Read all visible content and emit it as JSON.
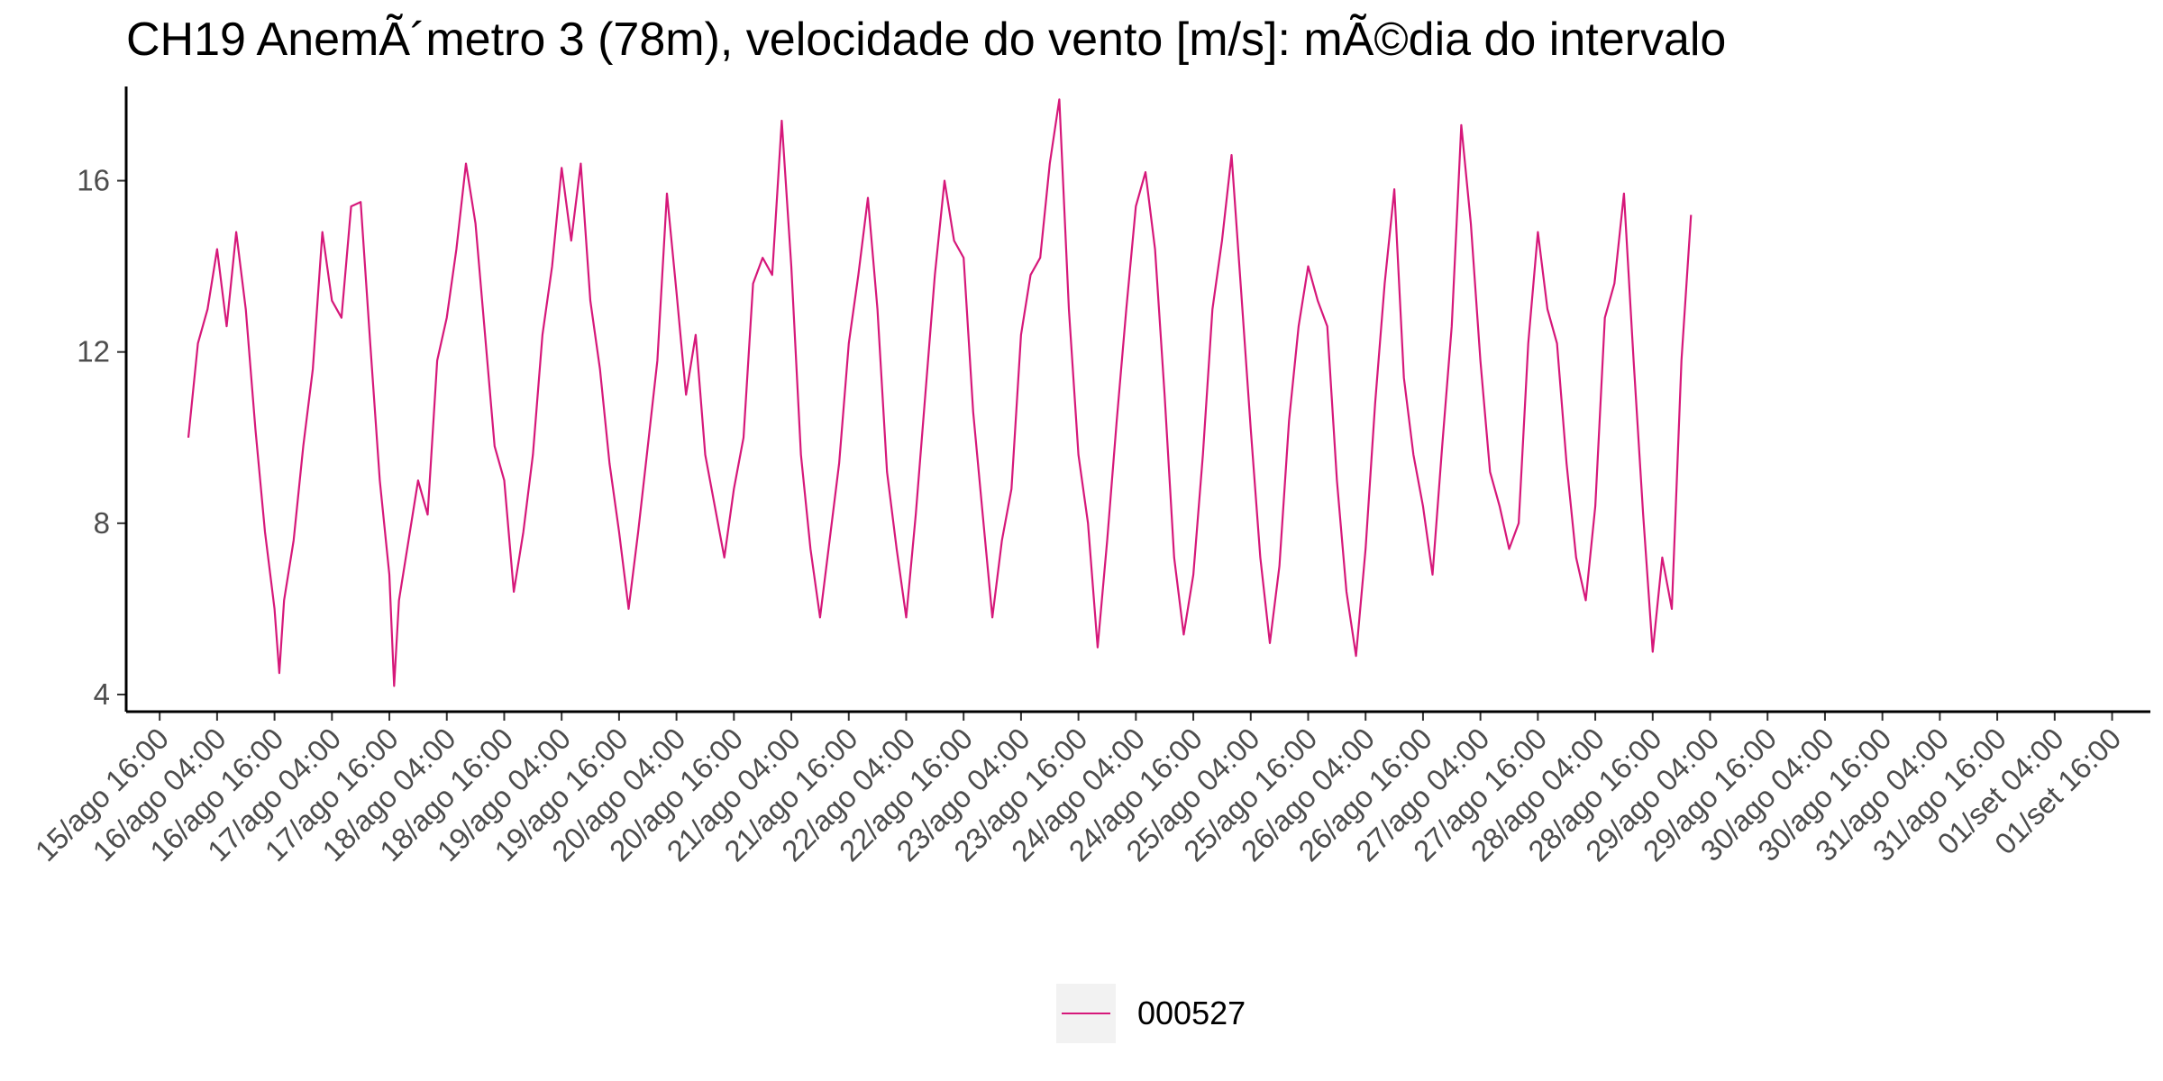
{
  "chart_data": {
    "type": "line",
    "title": "CH19 AnemÃ´metro 3 (78m), velocidade do vento [m/s]: mÃ©dia do intervalo",
    "xlabel": "",
    "ylabel": "",
    "ylim": [
      3.6,
      18.2
    ],
    "y_ticks": [
      4,
      8,
      12,
      16
    ],
    "x_range": [
      "2015-08-15T09:00",
      "2015-09-02T00:00"
    ],
    "x_ticks": [
      {
        "t": "2015-08-15T16:00",
        "label": "15/ago 16:00"
      },
      {
        "t": "2015-08-16T04:00",
        "label": "16/ago 04:00"
      },
      {
        "t": "2015-08-16T16:00",
        "label": "16/ago 16:00"
      },
      {
        "t": "2015-08-17T04:00",
        "label": "17/ago 04:00"
      },
      {
        "t": "2015-08-17T16:00",
        "label": "17/ago 16:00"
      },
      {
        "t": "2015-08-18T04:00",
        "label": "18/ago 04:00"
      },
      {
        "t": "2015-08-18T16:00",
        "label": "18/ago 16:00"
      },
      {
        "t": "2015-08-19T04:00",
        "label": "19/ago 04:00"
      },
      {
        "t": "2015-08-19T16:00",
        "label": "19/ago 16:00"
      },
      {
        "t": "2015-08-20T04:00",
        "label": "20/ago 04:00"
      },
      {
        "t": "2015-08-20T16:00",
        "label": "20/ago 16:00"
      },
      {
        "t": "2015-08-21T04:00",
        "label": "21/ago 04:00"
      },
      {
        "t": "2015-08-21T16:00",
        "label": "21/ago 16:00"
      },
      {
        "t": "2015-08-22T04:00",
        "label": "22/ago 04:00"
      },
      {
        "t": "2015-08-22T16:00",
        "label": "22/ago 16:00"
      },
      {
        "t": "2015-08-23T04:00",
        "label": "23/ago 04:00"
      },
      {
        "t": "2015-08-23T16:00",
        "label": "23/ago 16:00"
      },
      {
        "t": "2015-08-24T04:00",
        "label": "24/ago 04:00"
      },
      {
        "t": "2015-08-24T16:00",
        "label": "24/ago 16:00"
      },
      {
        "t": "2015-08-25T04:00",
        "label": "25/ago 04:00"
      },
      {
        "t": "2015-08-25T16:00",
        "label": "25/ago 16:00"
      },
      {
        "t": "2015-08-26T04:00",
        "label": "26/ago 04:00"
      },
      {
        "t": "2015-08-26T16:00",
        "label": "26/ago 16:00"
      },
      {
        "t": "2015-08-27T04:00",
        "label": "27/ago 04:00"
      },
      {
        "t": "2015-08-27T16:00",
        "label": "27/ago 16:00"
      },
      {
        "t": "2015-08-28T04:00",
        "label": "28/ago 04:00"
      },
      {
        "t": "2015-08-28T16:00",
        "label": "28/ago 16:00"
      },
      {
        "t": "2015-08-29T04:00",
        "label": "29/ago 04:00"
      },
      {
        "t": "2015-08-29T16:00",
        "label": "29/ago 16:00"
      },
      {
        "t": "2015-08-30T04:00",
        "label": "30/ago 04:00"
      },
      {
        "t": "2015-08-30T16:00",
        "label": "30/ago 16:00"
      },
      {
        "t": "2015-08-31T04:00",
        "label": "31/ago 04:00"
      },
      {
        "t": "2015-08-31T16:00",
        "label": "31/ago 16:00"
      },
      {
        "t": "2015-09-01T04:00",
        "label": "01/set 04:00"
      },
      {
        "t": "2015-09-01T16:00",
        "label": "01/set 16:00"
      }
    ],
    "grid": false,
    "legend_position": "bottom",
    "series": [
      {
        "name": "000527",
        "color": "#d6187a",
        "points": [
          [
            "2015-08-15T22:00",
            10.0
          ],
          [
            "2015-08-16T00:00",
            12.2
          ],
          [
            "2015-08-16T02:00",
            13.0
          ],
          [
            "2015-08-16T04:00",
            14.4
          ],
          [
            "2015-08-16T06:00",
            12.6
          ],
          [
            "2015-08-16T08:00",
            14.8
          ],
          [
            "2015-08-16T10:00",
            13.0
          ],
          [
            "2015-08-16T12:00",
            10.2
          ],
          [
            "2015-08-16T14:00",
            7.8
          ],
          [
            "2015-08-16T16:00",
            6.0
          ],
          [
            "2015-08-16T17:00",
            4.5
          ],
          [
            "2015-08-16T18:00",
            6.2
          ],
          [
            "2015-08-16T20:00",
            7.6
          ],
          [
            "2015-08-16T22:00",
            9.8
          ],
          [
            "2015-08-17T00:00",
            11.6
          ],
          [
            "2015-08-17T02:00",
            14.8
          ],
          [
            "2015-08-17T04:00",
            13.2
          ],
          [
            "2015-08-17T06:00",
            12.8
          ],
          [
            "2015-08-17T08:00",
            15.4
          ],
          [
            "2015-08-17T10:00",
            15.5
          ],
          [
            "2015-08-17T12:00",
            12.2
          ],
          [
            "2015-08-17T14:00",
            9.0
          ],
          [
            "2015-08-17T16:00",
            6.8
          ],
          [
            "2015-08-17T17:00",
            4.2
          ],
          [
            "2015-08-17T18:00",
            6.2
          ],
          [
            "2015-08-17T20:00",
            7.6
          ],
          [
            "2015-08-17T22:00",
            9.0
          ],
          [
            "2015-08-18T00:00",
            8.2
          ],
          [
            "2015-08-18T02:00",
            11.8
          ],
          [
            "2015-08-18T04:00",
            12.8
          ],
          [
            "2015-08-18T06:00",
            14.4
          ],
          [
            "2015-08-18T08:00",
            16.4
          ],
          [
            "2015-08-18T10:00",
            15.0
          ],
          [
            "2015-08-18T12:00",
            12.4
          ],
          [
            "2015-08-18T14:00",
            9.8
          ],
          [
            "2015-08-18T16:00",
            9.0
          ],
          [
            "2015-08-18T18:00",
            6.4
          ],
          [
            "2015-08-18T20:00",
            7.8
          ],
          [
            "2015-08-18T22:00",
            9.6
          ],
          [
            "2015-08-19T00:00",
            12.4
          ],
          [
            "2015-08-19T02:00",
            14.0
          ],
          [
            "2015-08-19T04:00",
            16.3
          ],
          [
            "2015-08-19T06:00",
            14.6
          ],
          [
            "2015-08-19T08:00",
            16.4
          ],
          [
            "2015-08-19T10:00",
            13.2
          ],
          [
            "2015-08-19T12:00",
            11.6
          ],
          [
            "2015-08-19T14:00",
            9.4
          ],
          [
            "2015-08-19T16:00",
            7.8
          ],
          [
            "2015-08-19T18:00",
            6.0
          ],
          [
            "2015-08-19T20:00",
            7.8
          ],
          [
            "2015-08-19T22:00",
            9.8
          ],
          [
            "2015-08-20T00:00",
            11.8
          ],
          [
            "2015-08-20T02:00",
            15.7
          ],
          [
            "2015-08-20T04:00",
            13.4
          ],
          [
            "2015-08-20T06:00",
            11.0
          ],
          [
            "2015-08-20T08:00",
            12.4
          ],
          [
            "2015-08-20T10:00",
            9.6
          ],
          [
            "2015-08-20T12:00",
            8.4
          ],
          [
            "2015-08-20T14:00",
            7.2
          ],
          [
            "2015-08-20T16:00",
            8.8
          ],
          [
            "2015-08-20T18:00",
            10.0
          ],
          [
            "2015-08-20T20:00",
            13.6
          ],
          [
            "2015-08-20T22:00",
            14.2
          ],
          [
            "2015-08-21T00:00",
            13.8
          ],
          [
            "2015-08-21T02:00",
            17.4
          ],
          [
            "2015-08-21T04:00",
            14.0
          ],
          [
            "2015-08-21T06:00",
            9.6
          ],
          [
            "2015-08-21T08:00",
            7.4
          ],
          [
            "2015-08-21T10:00",
            5.8
          ],
          [
            "2015-08-21T12:00",
            7.6
          ],
          [
            "2015-08-21T14:00",
            9.4
          ],
          [
            "2015-08-21T16:00",
            12.2
          ],
          [
            "2015-08-21T18:00",
            13.8
          ],
          [
            "2015-08-21T20:00",
            15.6
          ],
          [
            "2015-08-21T22:00",
            13.0
          ],
          [
            "2015-08-22T00:00",
            9.2
          ],
          [
            "2015-08-22T02:00",
            7.4
          ],
          [
            "2015-08-22T04:00",
            5.8
          ],
          [
            "2015-08-22T06:00",
            8.2
          ],
          [
            "2015-08-22T08:00",
            11.0
          ],
          [
            "2015-08-22T10:00",
            13.8
          ],
          [
            "2015-08-22T12:00",
            16.0
          ],
          [
            "2015-08-22T14:00",
            14.6
          ],
          [
            "2015-08-22T16:00",
            14.2
          ],
          [
            "2015-08-22T18:00",
            10.6
          ],
          [
            "2015-08-22T20:00",
            8.2
          ],
          [
            "2015-08-22T22:00",
            5.8
          ],
          [
            "2015-08-23T00:00",
            7.6
          ],
          [
            "2015-08-23T02:00",
            8.8
          ],
          [
            "2015-08-23T04:00",
            12.4
          ],
          [
            "2015-08-23T06:00",
            13.8
          ],
          [
            "2015-08-23T08:00",
            14.2
          ],
          [
            "2015-08-23T10:00",
            16.4
          ],
          [
            "2015-08-23T12:00",
            17.9
          ],
          [
            "2015-08-23T14:00",
            13.0
          ],
          [
            "2015-08-23T16:00",
            9.6
          ],
          [
            "2015-08-23T18:00",
            8.0
          ],
          [
            "2015-08-23T20:00",
            5.1
          ],
          [
            "2015-08-23T22:00",
            7.6
          ],
          [
            "2015-08-24T00:00",
            10.4
          ],
          [
            "2015-08-24T02:00",
            13.0
          ],
          [
            "2015-08-24T04:00",
            15.4
          ],
          [
            "2015-08-24T06:00",
            16.2
          ],
          [
            "2015-08-24T08:00",
            14.4
          ],
          [
            "2015-08-24T10:00",
            11.0
          ],
          [
            "2015-08-24T12:00",
            7.2
          ],
          [
            "2015-08-24T14:00",
            5.4
          ],
          [
            "2015-08-24T16:00",
            6.8
          ],
          [
            "2015-08-24T18:00",
            9.6
          ],
          [
            "2015-08-24T20:00",
            13.0
          ],
          [
            "2015-08-24T22:00",
            14.6
          ],
          [
            "2015-08-25T00:00",
            16.6
          ],
          [
            "2015-08-25T02:00",
            13.4
          ],
          [
            "2015-08-25T04:00",
            10.2
          ],
          [
            "2015-08-25T06:00",
            7.2
          ],
          [
            "2015-08-25T08:00",
            5.2
          ],
          [
            "2015-08-25T10:00",
            7.0
          ],
          [
            "2015-08-25T12:00",
            10.4
          ],
          [
            "2015-08-25T14:00",
            12.6
          ],
          [
            "2015-08-25T16:00",
            14.0
          ],
          [
            "2015-08-25T18:00",
            13.2
          ],
          [
            "2015-08-25T20:00",
            12.6
          ],
          [
            "2015-08-25T22:00",
            9.0
          ],
          [
            "2015-08-26T00:00",
            6.4
          ],
          [
            "2015-08-26T02:00",
            4.9
          ],
          [
            "2015-08-26T04:00",
            7.4
          ],
          [
            "2015-08-26T06:00",
            10.8
          ],
          [
            "2015-08-26T08:00",
            13.6
          ],
          [
            "2015-08-26T10:00",
            15.8
          ],
          [
            "2015-08-26T12:00",
            11.4
          ],
          [
            "2015-08-26T14:00",
            9.6
          ],
          [
            "2015-08-26T16:00",
            8.4
          ],
          [
            "2015-08-26T18:00",
            6.8
          ],
          [
            "2015-08-26T20:00",
            9.8
          ],
          [
            "2015-08-26T22:00",
            12.6
          ],
          [
            "2015-08-27T00:00",
            17.3
          ],
          [
            "2015-08-27T02:00",
            15.0
          ],
          [
            "2015-08-27T04:00",
            11.8
          ],
          [
            "2015-08-27T06:00",
            9.2
          ],
          [
            "2015-08-27T08:00",
            8.4
          ],
          [
            "2015-08-27T10:00",
            7.4
          ],
          [
            "2015-08-27T12:00",
            8.0
          ],
          [
            "2015-08-27T14:00",
            12.2
          ],
          [
            "2015-08-27T16:00",
            14.8
          ],
          [
            "2015-08-27T18:00",
            13.0
          ],
          [
            "2015-08-27T20:00",
            12.2
          ],
          [
            "2015-08-27T22:00",
            9.4
          ],
          [
            "2015-08-28T00:00",
            7.2
          ],
          [
            "2015-08-28T02:00",
            6.2
          ],
          [
            "2015-08-28T04:00",
            8.4
          ],
          [
            "2015-08-28T06:00",
            12.8
          ],
          [
            "2015-08-28T08:00",
            13.6
          ],
          [
            "2015-08-28T10:00",
            15.7
          ],
          [
            "2015-08-28T12:00",
            11.8
          ],
          [
            "2015-08-28T14:00",
            8.2
          ],
          [
            "2015-08-28T16:00",
            5.0
          ],
          [
            "2015-08-28T18:00",
            7.2
          ],
          [
            "2015-08-28T20:00",
            6.0
          ],
          [
            "2015-08-28T22:00",
            11.8
          ],
          [
            "2015-08-29T00:00",
            15.2
          ]
        ]
      }
    ]
  }
}
